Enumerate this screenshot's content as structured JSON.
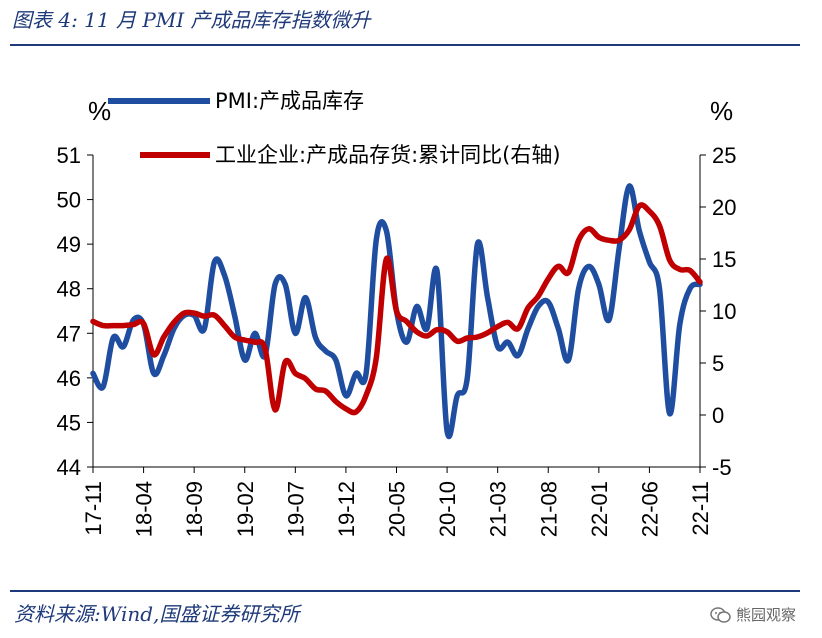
{
  "header": {
    "title": "图表 4:  11 月 PMI 产成品库存指数微升"
  },
  "footer": {
    "source": "资料来源:Wind,国盛证券研究所",
    "watermark": "熊园观察",
    "watermark_icon": "wechat-icon"
  },
  "chart_data": {
    "type": "line",
    "title": "",
    "left_unit": "%",
    "right_unit": "%",
    "x_tick_labels": [
      "17-11",
      "18-04",
      "18-09",
      "19-02",
      "19-07",
      "19-12",
      "20-05",
      "20-10",
      "21-03",
      "21-08",
      "22-01",
      "22-06",
      "22-11"
    ],
    "yleft_ticks": [
      44,
      45,
      46,
      47,
      48,
      49,
      50,
      51
    ],
    "yleft_lim": [
      44,
      51
    ],
    "yright_ticks": [
      -5,
      0,
      5,
      10,
      15,
      20,
      25
    ],
    "yright_lim": [
      -5,
      25
    ],
    "series": [
      {
        "name": "PMI:产成品库存",
        "axis": "left",
        "color": "#1f4ea1",
        "start_month": 0,
        "values": [
          46.1,
          45.8,
          46.9,
          46.7,
          47.3,
          47.2,
          46.1,
          46.5,
          47.1,
          47.4,
          47.4,
          47.1,
          48.6,
          48.3,
          47.4,
          46.4,
          47.0,
          46.5,
          48.1,
          48.1,
          47.0,
          47.8,
          46.9,
          46.6,
          46.4,
          45.6,
          46.1,
          46.1,
          49.1,
          49.3,
          47.5,
          46.8,
          47.6,
          47.1,
          48.4,
          44.8,
          45.6,
          46.0,
          49.0,
          47.8,
          46.7,
          46.8,
          46.5,
          47.1,
          47.6,
          47.7,
          47.1,
          46.4,
          48.0,
          48.5,
          48.1,
          47.3,
          48.9,
          50.3,
          49.3,
          48.6,
          48.0,
          45.2,
          47.2,
          48.0,
          48.1
        ]
      },
      {
        "name": "工业企业:产成品存货:累计同比(右轴)",
        "axis": "right",
        "color": "#c00000",
        "start_month": 0,
        "values": [
          9.0,
          8.6,
          8.6,
          8.6,
          8.7,
          8.8,
          5.8,
          7.5,
          8.9,
          9.8,
          9.8,
          9.5,
          9.6,
          8.6,
          7.5,
          7.2,
          7.0,
          6.4,
          0.5,
          5.1,
          4.0,
          3.5,
          2.5,
          2.3,
          1.3,
          0.6,
          0.3,
          1.9,
          5.5,
          15.0,
          10.0,
          9.0,
          8.0,
          7.6,
          8.2,
          8.0,
          7.1,
          7.4,
          7.5,
          7.9,
          8.5,
          8.9,
          8.3,
          10.3,
          11.4,
          13.1,
          14.3,
          13.7,
          16.8,
          17.9,
          17.1,
          16.8,
          16.8,
          17.8,
          20.1,
          19.6,
          18.2,
          14.9,
          14.0,
          13.9,
          12.8
        ]
      }
    ],
    "legend": "top-left, inside plot"
  }
}
